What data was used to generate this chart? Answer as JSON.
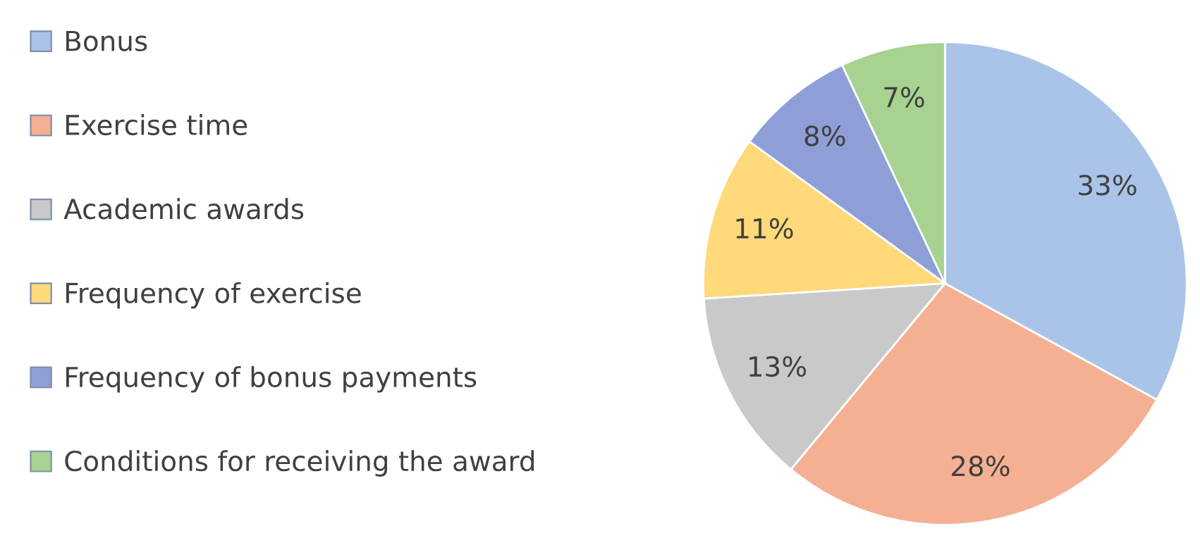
{
  "chart_data": {
    "type": "pie",
    "categories": [
      "Bonus",
      "Exercise time",
      "Academic awards",
      "Frequency of exercise",
      "Frequency of bonus payments",
      "Conditions for receiving the award"
    ],
    "values": [
      33,
      28,
      13,
      11,
      8,
      7
    ],
    "colors": [
      "#a9c4e8",
      "#f5b093",
      "#c9c9c9",
      "#ffd97a",
      "#8e9fd8",
      "#a7d290"
    ],
    "value_labels": [
      "33%",
      "28%",
      "13%",
      "11%",
      "8%",
      "7%"
    ],
    "legend": "left"
  }
}
